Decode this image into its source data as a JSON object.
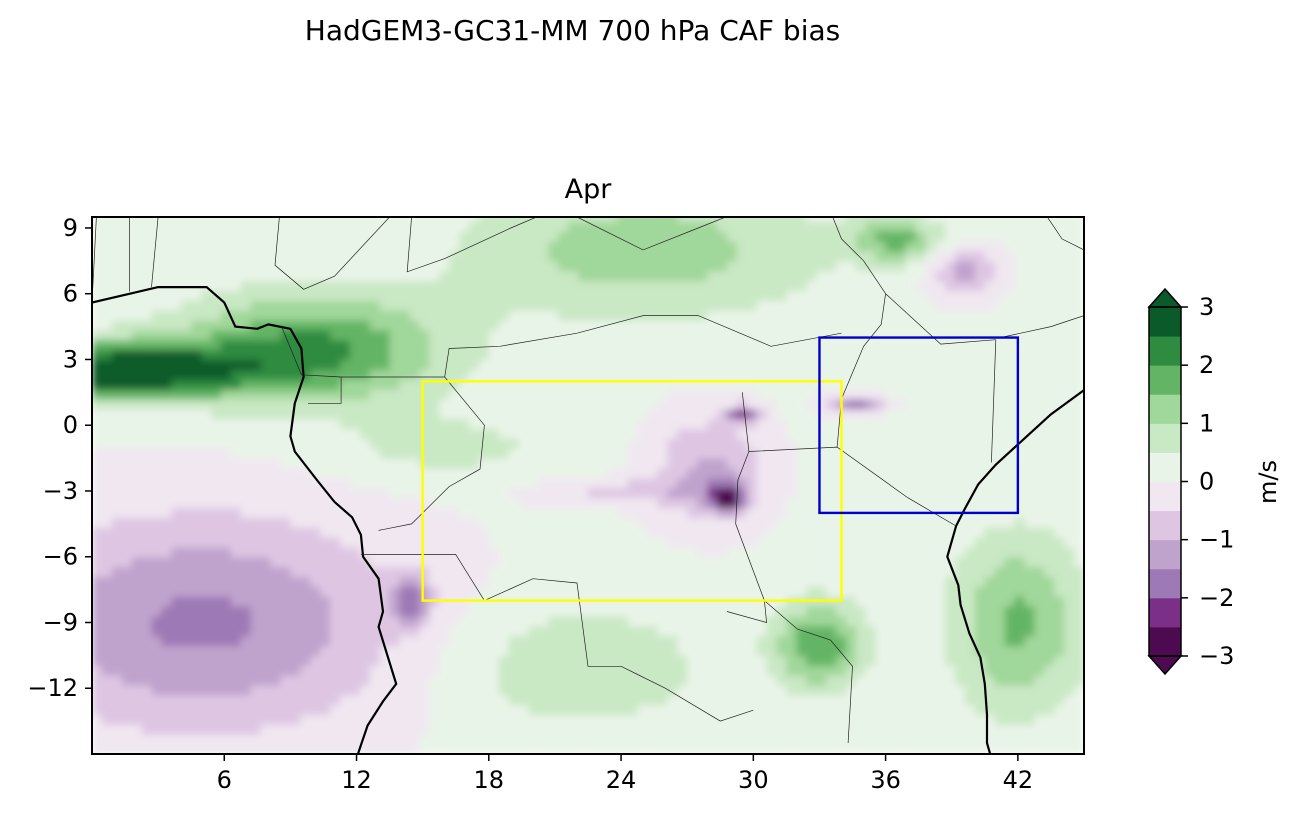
{
  "figure": {
    "suptitle": "HadGEM3-GC31-MM 700 hPa CAF bias"
  },
  "chart_data": {
    "type": "heatmap",
    "title": "Apr",
    "xlabel": "",
    "ylabel": "",
    "xlim": [
      0,
      45
    ],
    "ylim": [
      -15,
      9.5
    ],
    "x_ticks": [
      6,
      12,
      18,
      24,
      30,
      36,
      42
    ],
    "y_ticks": [
      9,
      6,
      3,
      0,
      -3,
      -6,
      -9,
      -12
    ],
    "x_tick_labels": [
      "6",
      "12",
      "18",
      "24",
      "30",
      "36",
      "42"
    ],
    "y_tick_labels": [
      "9",
      "6",
      "3",
      "0",
      "−3",
      "−6",
      "−9",
      "−12"
    ],
    "colorbar": {
      "label": "m/s",
      "levels": [
        -3,
        -2.5,
        -2,
        -1.5,
        -1,
        -0.5,
        0,
        0.5,
        1,
        1.5,
        2,
        2.5,
        3
      ],
      "ticks": [
        3,
        2,
        1,
        0,
        -1,
        -2,
        -3
      ],
      "tick_labels": [
        "3",
        "2",
        "1",
        "0",
        "−1",
        "−2",
        "−3"
      ],
      "extend": "both",
      "colors": [
        "#4d0a50",
        "#7b2f87",
        "#9d79b5",
        "#c0a3cd",
        "#dec6e3",
        "#f0e7f1",
        "#e9f4e8",
        "#c9e8c4",
        "#a0d79a",
        "#63b565",
        "#2e8b40",
        "#0b5b2a"
      ]
    },
    "bias_field_features": [
      {
        "lon": 1.0,
        "lat": 2.5,
        "value": 3.0,
        "sx": 6.0,
        "sy": 1.3
      },
      {
        "lon": 10.0,
        "lat": 3.5,
        "value": 2.0,
        "sx": 6.0,
        "sy": 2.5
      },
      {
        "lon": 25.0,
        "lat": 8.0,
        "value": 1.2,
        "sx": 8.0,
        "sy": 3.0
      },
      {
        "lon": 16.0,
        "lat": -1.0,
        "value": 0.6,
        "sx": 5.0,
        "sy": 1.5
      },
      {
        "lon": 5.0,
        "lat": -9.0,
        "value": -1.7,
        "sx": 9.0,
        "sy": 5.0
      },
      {
        "lon": 14.5,
        "lat": -8.0,
        "value": -1.6,
        "sx": 0.8,
        "sy": 1.2
      },
      {
        "lon": 29.5,
        "lat": 0.5,
        "value": -2.0,
        "sx": 0.8,
        "sy": 0.4
      },
      {
        "lon": 28.8,
        "lat": -3.3,
        "value": -2.6,
        "sx": 0.8,
        "sy": 0.6
      },
      {
        "lon": 28.0,
        "lat": -2.0,
        "value": -1.2,
        "sx": 2.5,
        "sy": 2.5
      },
      {
        "lon": 24.0,
        "lat": -3.0,
        "value": -0.7,
        "sx": 4.0,
        "sy": 0.6
      },
      {
        "lon": 34.5,
        "lat": 1.0,
        "value": -1.8,
        "sx": 1.3,
        "sy": 0.4
      },
      {
        "lon": 39.5,
        "lat": 7.0,
        "value": -1.3,
        "sx": 1.5,
        "sy": 1.2
      },
      {
        "lon": 36.5,
        "lat": 8.5,
        "value": 1.5,
        "sx": 2.0,
        "sy": 1.0
      },
      {
        "lon": 33.0,
        "lat": -10.0,
        "value": 1.8,
        "sx": 2.0,
        "sy": 2.0
      },
      {
        "lon": 42.0,
        "lat": -9.0,
        "value": 1.5,
        "sx": 3.0,
        "sy": 4.0
      },
      {
        "lon": 22.0,
        "lat": -11.0,
        "value": 0.8,
        "sx": 6.0,
        "sy": 3.0
      }
    ],
    "regions": [
      {
        "color": "#ffff00",
        "lon_min": 15,
        "lon_max": 34,
        "lat_min": -8,
        "lat_max": 2
      },
      {
        "color": "#0000cc",
        "lon_min": 33,
        "lon_max": 42,
        "lat_min": -4,
        "lat_max": 4
      }
    ]
  }
}
